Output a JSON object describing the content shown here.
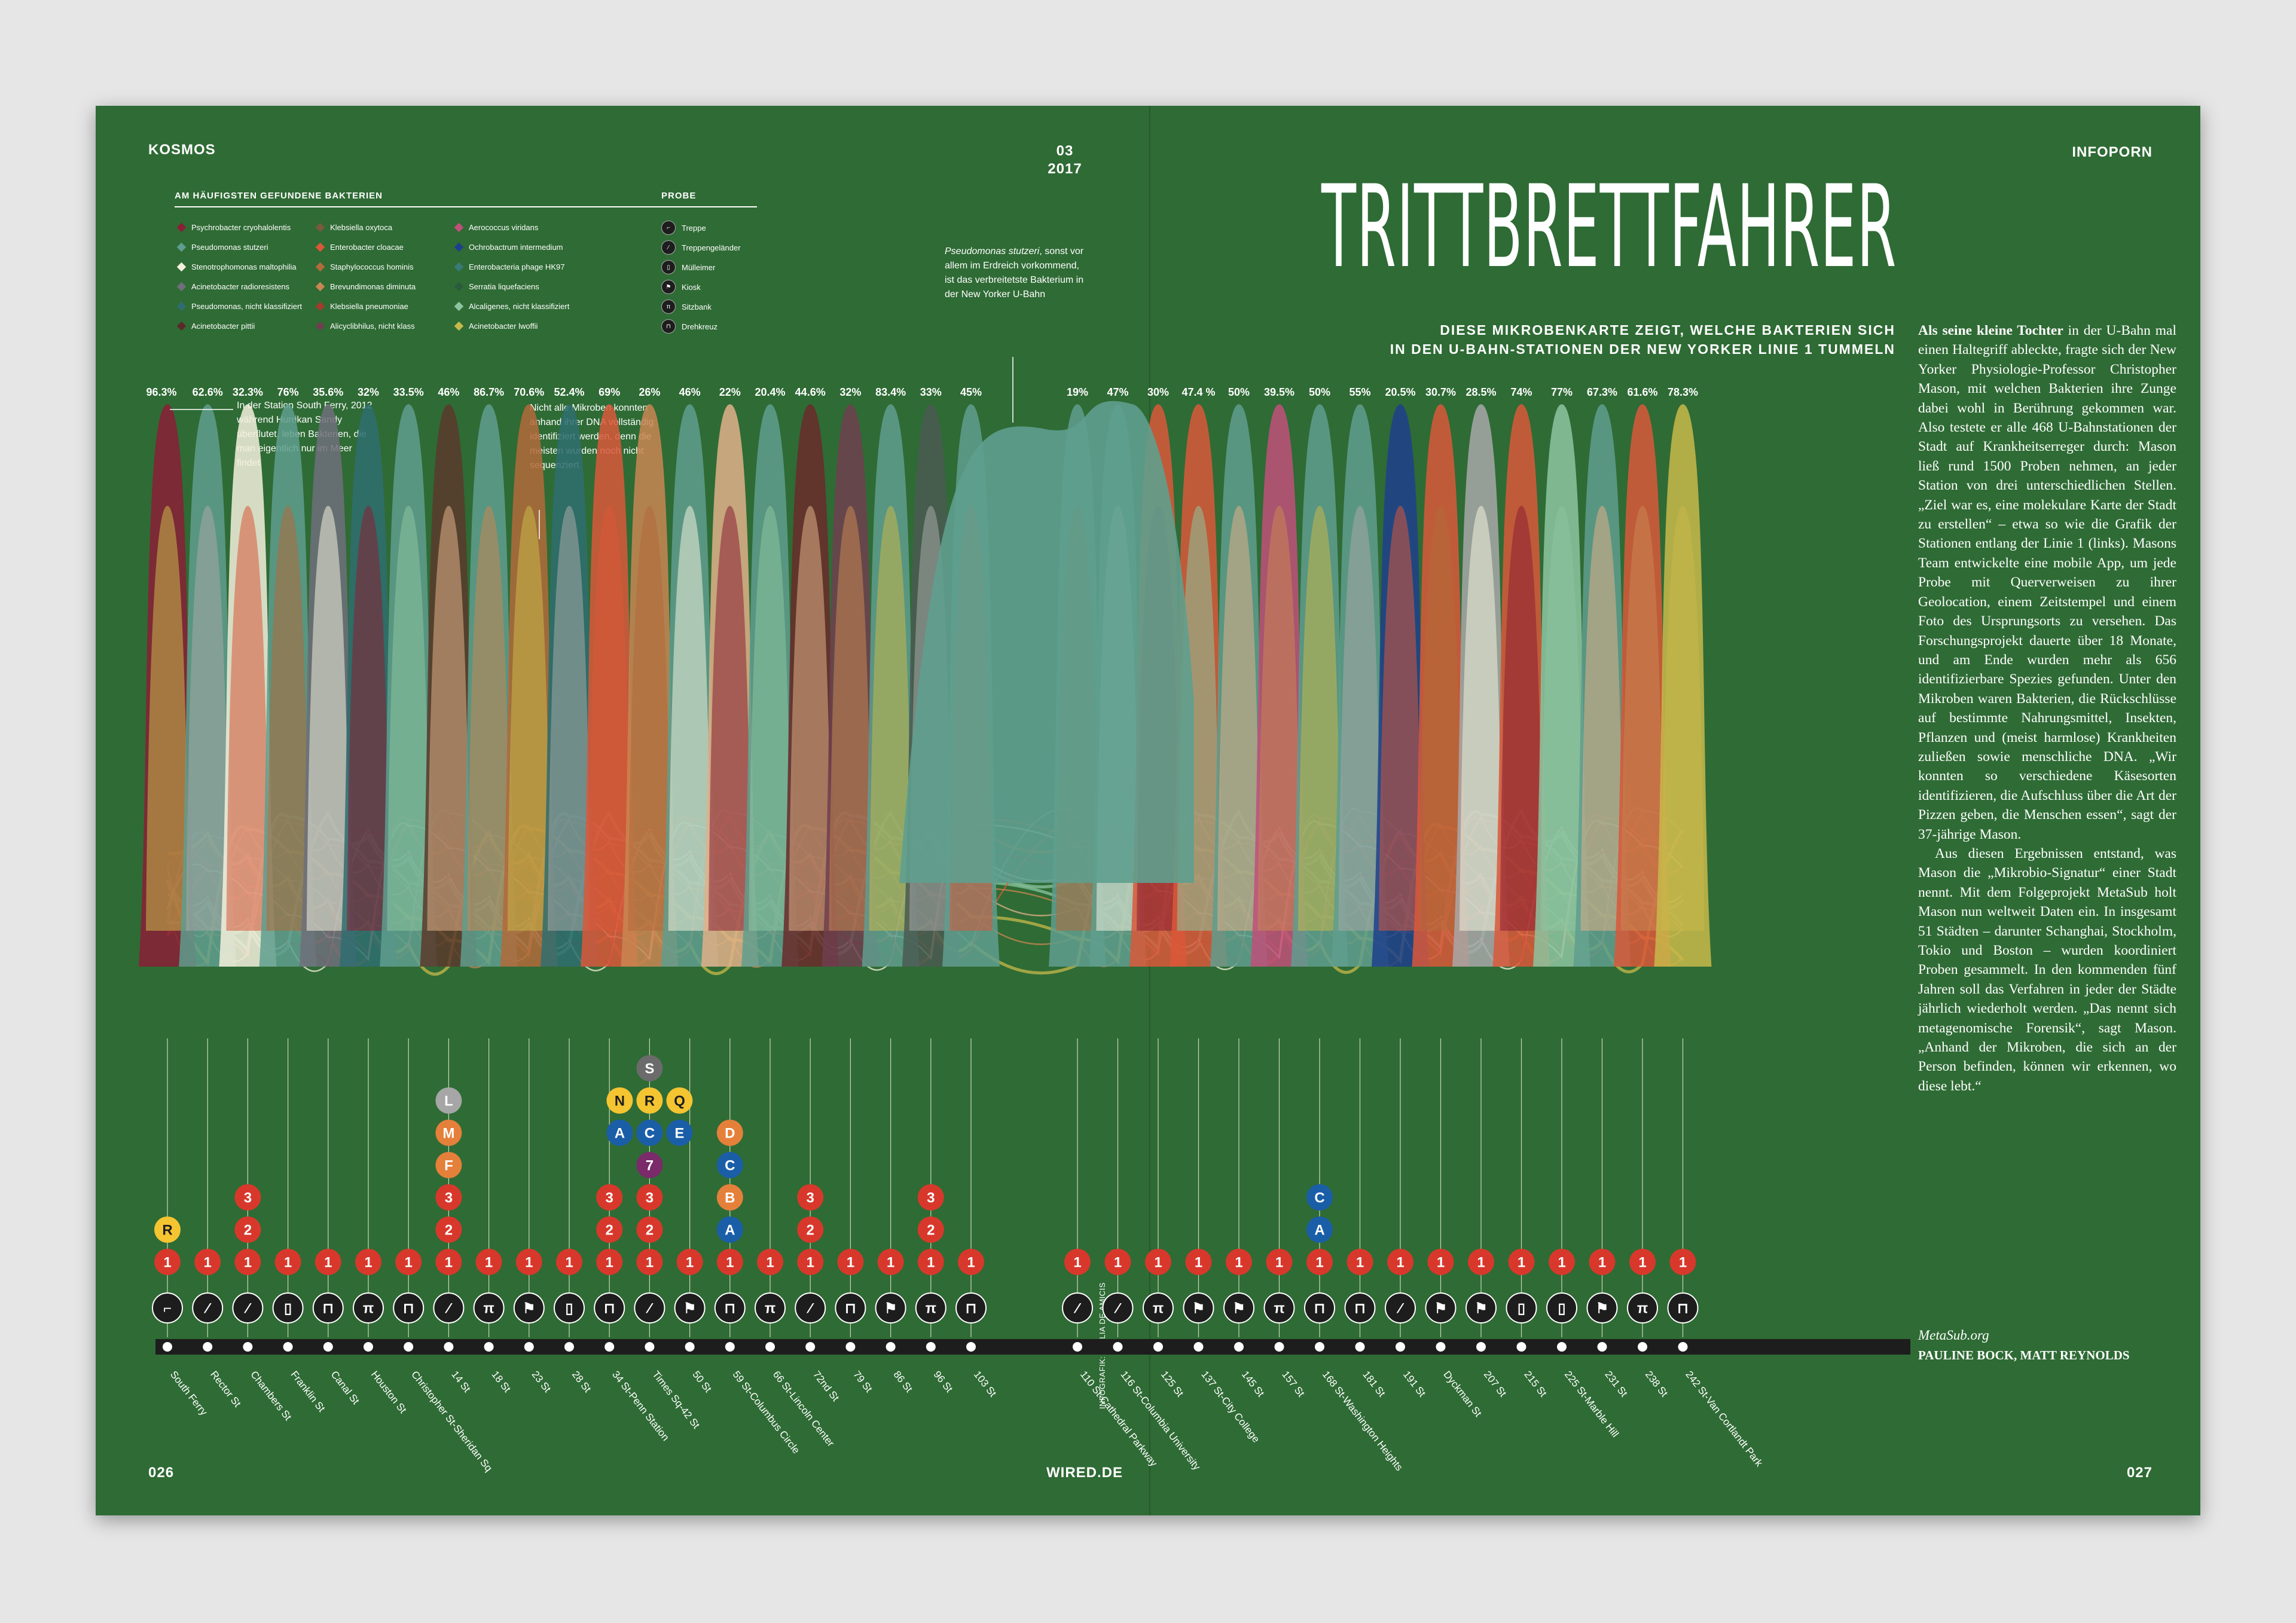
{
  "header": {
    "section_left": "KOSMOS",
    "issue": "03",
    "year": "2017",
    "section_right": "INFOPORN",
    "page_left": "026",
    "page_right": "027",
    "footer_site": "WIRED.DE"
  },
  "headline": "TRITTBRETTFAHRER",
  "subhead_line1": "DIESE MIKROBENKARTE ZEIGT, WELCHE BAKTERIEN SICH",
  "subhead_line2": "IN DEN U-BAHN-STATIONEN DER NEW YORKER LINIE 1 TUMMELN",
  "legend": {
    "title": "AM HÄUFIGSTEN GEFUNDENE BAKTERIEN",
    "items": [
      {
        "label": "Psychrobacter cryohalolentis",
        "color": "#8a1f35"
      },
      {
        "label": "Pseudomonas stutzeri",
        "color": "#5f9e8e"
      },
      {
        "label": "Stenotrophomonas maltophilia",
        "color": "#f3f0dc"
      },
      {
        "label": "Acinetobacter radioresistens",
        "color": "#6f6f7a"
      },
      {
        "label": "Pseudomonas, nicht klassifiziert",
        "color": "#2f6d70"
      },
      {
        "label": "Acinetobacter pittii",
        "color": "#5a2a2a"
      },
      {
        "label": "Klebsiella oxytoca",
        "color": "#7a5a3c"
      },
      {
        "label": "Enterobacter cloacae",
        "color": "#d9583a"
      },
      {
        "label": "Staphylococcus hominis",
        "color": "#b36a3a"
      },
      {
        "label": "Brevundimonas diminuta",
        "color": "#c98652"
      },
      {
        "label": "Klebsiella pneumoniae",
        "color": "#a23c2e"
      },
      {
        "label": "Alicyclibhilus, nicht klass",
        "color": "#6e3f4f"
      },
      {
        "label": "Aerococcus viridans",
        "color": "#c0507a"
      },
      {
        "label": "Ochrobactrum intermedium",
        "color": "#1e3f8c"
      },
      {
        "label": "Enterobacteria phage HK97",
        "color": "#3b7a78"
      },
      {
        "label": "Serratia liquefaciens",
        "color": "#2b5a3c"
      },
      {
        "label": "Alcaligenes, nicht klassifiziert",
        "color": "#8cc4a0"
      },
      {
        "label": "Acinetobacter lwoffii",
        "color": "#c8b84a"
      }
    ]
  },
  "probe": {
    "title": "PROBE",
    "items": [
      {
        "label": "Treppe",
        "icon": "stairs-icon"
      },
      {
        "label": "Treppengeländer",
        "icon": "railing-icon"
      },
      {
        "label": "Mülleimer",
        "icon": "trash-can-icon"
      },
      {
        "label": "Kiosk",
        "icon": "kiosk-icon"
      },
      {
        "label": "Sitzbank",
        "icon": "bench-icon"
      },
      {
        "label": "Drehkreuz",
        "icon": "turnstile-icon"
      }
    ]
  },
  "notes": {
    "south_ferry": "In der Station South Ferry, 2012 während Hurrikan Sandy überflutet, leben Bakterien, die man eigentlich nur im Meer findet",
    "dna": "Nicht alle Mikroben konnten anhand ihrer DNA vollständig identifiziert werden, denn die meisten wurden noch nicht sequenziert",
    "pseudomonas_species": "Pseudomonas stutzeri",
    "pseudomonas_rest": ", sonst vor allem im Erdreich vorkommend, ist das verbreitetste Bakterium in der New Yorker U-Bahn"
  },
  "body": {
    "lead": "Als seine kleine Tochter",
    "p1": " in der U-Bahn mal einen Haltegriff ableckte, fragte sich der New Yorker Physiologie-Professor Christopher Mason, mit welchen Bakterien ihre Zunge dabei wohl in Berührung gekommen war. Also testete er alle 468 U-Bahnstationen der Stadt auf Krankheitserreger durch: Mason ließ rund 1500 Proben nehmen, an jeder Station von drei unterschiedlichen Stellen. „Ziel war es, eine molekulare Karte der Stadt zu erstellen“ – etwa so wie die Grafik der Stationen entlang der Linie 1 (links). Masons Team entwickelte eine mobile App, um jede Probe mit Querverweisen zu ihrer Geolocation, einem Zeitstempel und einem Foto des Ursprungsorts zu versehen. Das Forschungsprojekt dauerte über 18 Monate, und am Ende wurden mehr als 656 identifizierbare Spezies gefunden. Unter den Mikroben waren Bakterien, die Rückschlüsse auf bestimmte Nahrungsmittel, Insekten, Pflanzen und (meist harmlose) Krankheiten zuließen sowie menschliche DNA. „Wir konnten so verschiedene Käsesorten identifizieren, die Aufschluss über die Art der Pizzen geben, die Menschen essen“, sagt der 37-jährige Mason.",
    "p2": "Aus diesen Ergebnissen entstand, was Mason die „Mikrobio-Signatur“ einer Stadt nennt. Mit dem Folgeprojekt MetaSub holt Mason nun weltweit Daten ein. In insgesamt 51 Städten – darunter Schanghai, Stockholm, Tokio und Boston – wurden koordiniert Proben gesammelt. In den kommenden fünf Jahren soll das Verfahren in jeder der Städte jährlich wiederholt werden. „Das nennt sich metagenomische Forensik“, sagt Mason. „Anhand der Mikroben, die sich an der Person befinden, können wir erkennen, wo diese lebt.“",
    "source": "MetaSub.org",
    "authors": "PAULINE BOCK, MATT REYNOLDS"
  },
  "infographic_credit": "INFOGRAFIK: GIULIA DE AMICIS",
  "chart_data": {
    "type": "area",
    "title": "TRITTBRETTFAHRER",
    "x_unit": "station",
    "y_unit": "percent",
    "ylim": [
      0,
      100
    ],
    "stations": [
      {
        "name": "South Ferry",
        "value": "96.3%",
        "v": 96.3,
        "color": "#8a1f35",
        "probe": "stairs-icon",
        "lines": [
          "1",
          "R"
        ]
      },
      {
        "name": "Rector St",
        "value": "62.6%",
        "v": 62.6,
        "color": "#5f9e8e",
        "probe": "railing-icon",
        "lines": [
          "1"
        ]
      },
      {
        "name": "Chambers St",
        "value": "32.3%",
        "v": 32.3,
        "color": "#f3f0dc",
        "probe": "railing-icon",
        "lines": [
          "1",
          "2",
          "3"
        ]
      },
      {
        "name": "Franklin St",
        "value": "76%",
        "v": 76,
        "color": "#5f9e8e",
        "probe": "trash-can-icon",
        "lines": [
          "1"
        ]
      },
      {
        "name": "Canal St",
        "value": "35.6%",
        "v": 35.6,
        "color": "#6f6f7a",
        "probe": "turnstile-icon",
        "lines": [
          "1"
        ]
      },
      {
        "name": "Houston St",
        "value": "32%",
        "v": 32,
        "color": "#2f6d70",
        "probe": "bench-icon",
        "lines": [
          "1"
        ]
      },
      {
        "name": "Christopher St-Sheridan Sq",
        "value": "33.5%",
        "v": 33.5,
        "color": "#5f9e8e",
        "probe": "turnstile-icon",
        "lines": [
          "1"
        ]
      },
      {
        "name": "14 St",
        "value": "46%",
        "v": 46,
        "color": "#5a3a2c",
        "probe": "railing-icon",
        "lines": [
          "1",
          "2",
          "3",
          "F",
          "M",
          "L"
        ]
      },
      {
        "name": "18 St",
        "value": "86.7%",
        "v": 86.7,
        "color": "#5f9e8e",
        "probe": "bench-icon",
        "lines": [
          "1"
        ]
      },
      {
        "name": "23 St",
        "value": "70.6%",
        "v": 70.6,
        "color": "#b36a3a",
        "probe": "kiosk-icon",
        "lines": [
          "1"
        ]
      },
      {
        "name": "28 St",
        "value": "52.4%",
        "v": 52.4,
        "color": "#2f6d70",
        "probe": "trash-can-icon",
        "lines": [
          "1"
        ]
      },
      {
        "name": "34 St-Penn Station",
        "value": "69%",
        "v": 69,
        "color": "#d9583a",
        "probe": "turnstile-icon",
        "lines": [
          "1",
          "2",
          "3"
        ]
      },
      {
        "name": "Times Sq-42 St",
        "value": "26%",
        "v": 26,
        "color": "#c98652",
        "probe": "railing-icon",
        "lines": [
          "1",
          "2",
          "3",
          "7",
          "A",
          "C",
          "E",
          "N",
          "R",
          "Q",
          "S"
        ]
      },
      {
        "name": "50 St",
        "value": "46%",
        "v": 46,
        "color": "#5f9e8e",
        "probe": "kiosk-icon",
        "lines": [
          "1"
        ]
      },
      {
        "name": "59 St-Columbus Circle",
        "value": "22%",
        "v": 22,
        "color": "#e0b088",
        "probe": "turnstile-icon",
        "lines": [
          "1",
          "A",
          "B",
          "C",
          "D"
        ]
      },
      {
        "name": "66 St-Lincoln Center",
        "value": "20.4%",
        "v": 20.4,
        "color": "#5f9e8e",
        "probe": "bench-icon",
        "lines": [
          "1"
        ]
      },
      {
        "name": "72nd St",
        "value": "44.6%",
        "v": 44.6,
        "color": "#6a2a2a",
        "probe": "railing-icon",
        "lines": [
          "1",
          "2",
          "3"
        ]
      },
      {
        "name": "79 St",
        "value": "32%",
        "v": 32,
        "color": "#6e3f4f",
        "probe": "turnstile-icon",
        "lines": [
          "1"
        ]
      },
      {
        "name": "86 St",
        "value": "83.4%",
        "v": 83.4,
        "color": "#5f9e8e",
        "probe": "kiosk-icon",
        "lines": [
          "1"
        ]
      },
      {
        "name": "96 St",
        "value": "33%",
        "v": 33,
        "color": "#4a5a52",
        "probe": "bench-icon",
        "lines": [
          "1",
          "2",
          "3"
        ]
      },
      {
        "name": "103 St",
        "value": "45%",
        "v": 45,
        "color": "#5f9e8e",
        "probe": "turnstile-icon",
        "lines": [
          "1"
        ]
      },
      {
        "name": "110 St-Cathedral Parkway",
        "value": "19%",
        "v": 19,
        "color": "#5f9e8e",
        "probe": "railing-icon",
        "lines": [
          "1"
        ]
      },
      {
        "name": "116 St-Columbia University",
        "value": "47%",
        "v": 47,
        "color": "#5f9e8e",
        "probe": "railing-icon",
        "lines": [
          "1"
        ]
      },
      {
        "name": "125 St",
        "value": "30%",
        "v": 30,
        "color": "#d9583a",
        "probe": "bench-icon",
        "lines": [
          "1"
        ]
      },
      {
        "name": "137 St-City College",
        "value": "47.4 %",
        "v": 47.4,
        "color": "#d9583a",
        "probe": "kiosk-icon",
        "lines": [
          "1"
        ]
      },
      {
        "name": "145 St",
        "value": "50%",
        "v": 50,
        "color": "#5f9e8e",
        "probe": "kiosk-icon",
        "lines": [
          "1"
        ]
      },
      {
        "name": "157 St",
        "value": "39.5%",
        "v": 39.5,
        "color": "#c0507a",
        "probe": "bench-icon",
        "lines": [
          "1"
        ]
      },
      {
        "name": "168 St-Washington Heights",
        "value": "50%",
        "v": 50,
        "color": "#5f9e8e",
        "probe": "turnstile-icon",
        "lines": [
          "1",
          "A",
          "C"
        ]
      },
      {
        "name": "181 St",
        "value": "55%",
        "v": 55,
        "color": "#5f9e8e",
        "probe": "turnstile-icon",
        "lines": [
          "1"
        ]
      },
      {
        "name": "191 St",
        "value": "20.5%",
        "v": 20.5,
        "color": "#1e3f8c",
        "probe": "railing-icon",
        "lines": [
          "1"
        ]
      },
      {
        "name": "Dyckman St",
        "value": "30.7%",
        "v": 30.7,
        "color": "#d9583a",
        "probe": "kiosk-icon",
        "lines": [
          "1"
        ]
      },
      {
        "name": "207 St",
        "value": "28.5%",
        "v": 28.5,
        "color": "#a8a8a8",
        "probe": "kiosk-icon",
        "lines": [
          "1"
        ]
      },
      {
        "name": "215 St",
        "value": "74%",
        "v": 74,
        "color": "#d9583a",
        "probe": "trash-can-icon",
        "lines": [
          "1"
        ]
      },
      {
        "name": "225 St-Marble Hill",
        "value": "77%",
        "v": 77,
        "color": "#8cc4a0",
        "probe": "trash-can-icon",
        "lines": [
          "1"
        ]
      },
      {
        "name": "231 St",
        "value": "67.3%",
        "v": 67.3,
        "color": "#5f9e8e",
        "probe": "kiosk-icon",
        "lines": [
          "1"
        ]
      },
      {
        "name": "238 St",
        "value": "61.6%",
        "v": 61.6,
        "color": "#d9583a",
        "probe": "bench-icon",
        "lines": [
          "1"
        ]
      },
      {
        "name": "242 St-Van Cortlandt Park",
        "value": "78.3%",
        "v": 78.3,
        "color": "#c8b84a",
        "probe": "turnstile-icon",
        "lines": [
          "1"
        ]
      }
    ],
    "line_colors": {
      "1": "#d8382b",
      "2": "#d8382b",
      "3": "#d8382b",
      "A": "#1a5ea8",
      "C": "#1a5ea8",
      "E": "#1a5ea8",
      "B": "#e5803a",
      "D": "#e5803a",
      "F": "#e5803a",
      "M": "#e5803a",
      "N": "#f5c431",
      "Q": "#f5c431",
      "R": "#f5c431",
      "L": "#a6a6a6",
      "S": "#6b6b6b",
      "7": "#7b2a6a"
    }
  }
}
